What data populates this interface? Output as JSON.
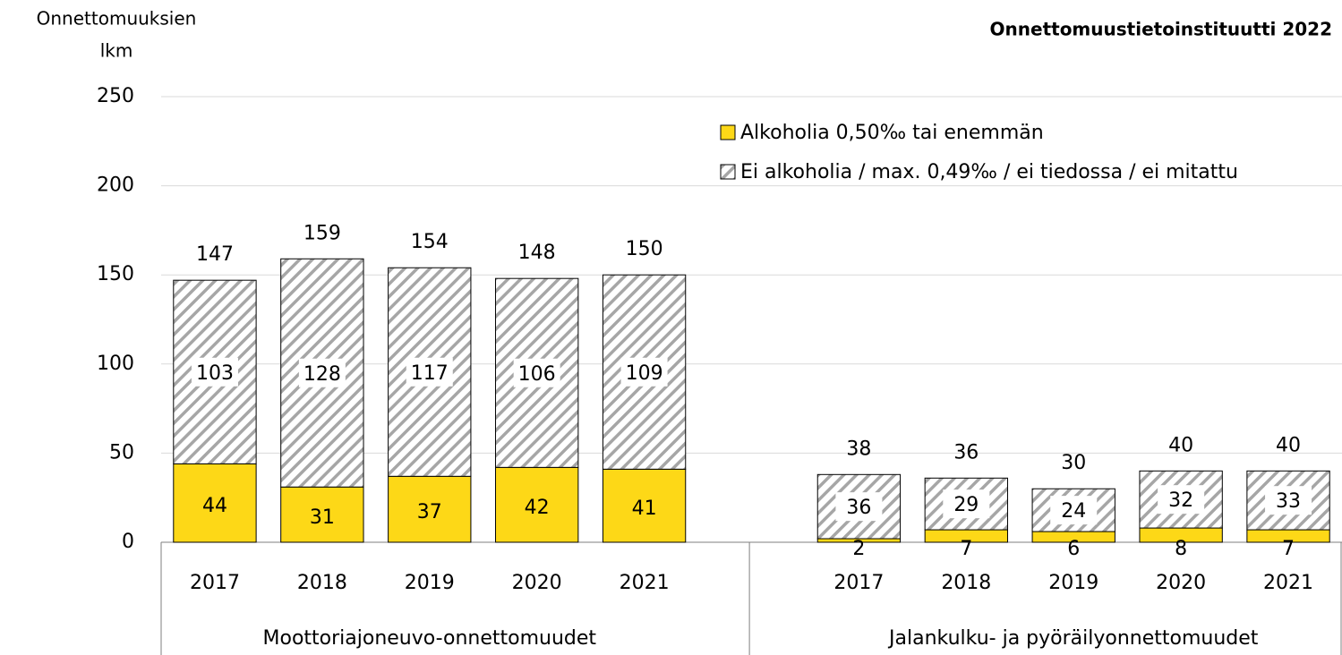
{
  "chart_data": {
    "type": "stacked_bar",
    "ylabel": [
      "Onnettomuuksien",
      "lkm"
    ],
    "source": "Onnettomuustietoinstituutti  2022",
    "groups": [
      {
        "name": "Moottoriajoneuvo-onnettomuudet",
        "categories": [
          "2017",
          "2018",
          "2019",
          "2020",
          "2021"
        ]
      },
      {
        "name": "Jalankulku- ja pyöräilyonnettomuudet",
        "categories": [
          "2017",
          "2018",
          "2019",
          "2020",
          "2021"
        ]
      }
    ],
    "series": [
      {
        "name": "Alkoholia 0,50‰ tai enemmän",
        "color": "#fdd817",
        "values": [
          44,
          31,
          37,
          42,
          41,
          2,
          7,
          6,
          8,
          7
        ]
      },
      {
        "name": "Ei alkoholia / max. 0,49‰ / ei tiedossa / ei mitattu",
        "color": "#a6a6a6",
        "pattern": "hatch",
        "values": [
          103,
          128,
          117,
          106,
          109,
          36,
          29,
          24,
          32,
          33
        ]
      }
    ],
    "totals": [
      147,
      159,
      154,
      148,
      150,
      38,
      36,
      30,
      40,
      40
    ],
    "ylim": [
      0,
      250
    ],
    "yticks": [
      0,
      50,
      100,
      150,
      200,
      250
    ],
    "grid": true,
    "legend": "top-right"
  }
}
